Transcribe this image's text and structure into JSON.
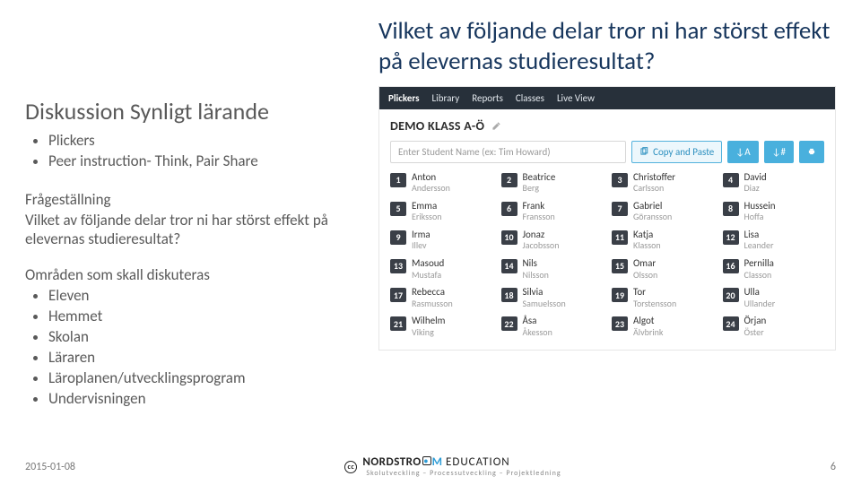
{
  "headline": "Vilket av följande delar tror ni har störst effekt på elevernas studieresultat?",
  "left": {
    "title": "Diskussion Synligt lärande",
    "bullets_top": [
      "Plickers",
      "Peer instruction- Think, Pair Share"
    ],
    "q_label": "Frågeställning",
    "q_text": "Vilket av följande delar tror ni har störst effekt på elevernas studieresultat?",
    "areas_label": "Områden som skall diskuteras",
    "areas": [
      "Eleven",
      "Hemmet",
      "Skolan",
      "Läraren",
      "Läroplanen/utvecklingsprogram",
      "Undervisningen"
    ]
  },
  "plickers": {
    "nav": {
      "brand": "Plickers",
      "items": [
        "Library",
        "Reports",
        "Classes",
        "Live View"
      ]
    },
    "class_name": "DEMO KLASS A-Ö",
    "input_placeholder": "Enter Student Name (ex: Tim Howard)",
    "copy_paste": "Copy and Paste",
    "sort_btns": [
      "↓A",
      "↓#"
    ],
    "print_icon": "print",
    "students": [
      {
        "n": 1,
        "fn": "Anton",
        "ln": "Andersson"
      },
      {
        "n": 2,
        "fn": "Beatrice",
        "ln": "Berg"
      },
      {
        "n": 3,
        "fn": "Christoffer",
        "ln": "Carlsson"
      },
      {
        "n": 4,
        "fn": "David",
        "ln": "Diaz"
      },
      {
        "n": 5,
        "fn": "Emma",
        "ln": "Eriksson"
      },
      {
        "n": 6,
        "fn": "Frank",
        "ln": "Fransson"
      },
      {
        "n": 7,
        "fn": "Gabriel",
        "ln": "Göransson"
      },
      {
        "n": 8,
        "fn": "Hussein",
        "ln": "Hoffa"
      },
      {
        "n": 9,
        "fn": "Irma",
        "ln": "Illev"
      },
      {
        "n": 10,
        "fn": "Jonaz",
        "ln": "Jacobsson"
      },
      {
        "n": 11,
        "fn": "Katja",
        "ln": "Klasson"
      },
      {
        "n": 12,
        "fn": "Lisa",
        "ln": "Leander"
      },
      {
        "n": 13,
        "fn": "Masoud",
        "ln": "Mustafa"
      },
      {
        "n": 14,
        "fn": "Nils",
        "ln": "Nilsson"
      },
      {
        "n": 15,
        "fn": "Omar",
        "ln": "Olsson"
      },
      {
        "n": 16,
        "fn": "Pernilla",
        "ln": "Classon"
      },
      {
        "n": 17,
        "fn": "Rebecca",
        "ln": "Rasmusson"
      },
      {
        "n": 18,
        "fn": "Silvia",
        "ln": "Samuelsson"
      },
      {
        "n": 19,
        "fn": "Tor",
        "ln": "Torstensson"
      },
      {
        "n": 20,
        "fn": "Ulla",
        "ln": "Ullander"
      },
      {
        "n": 21,
        "fn": "Wilhelm",
        "ln": "Viking"
      },
      {
        "n": 22,
        "fn": "Åsa",
        "ln": "Åkesson"
      },
      {
        "n": 23,
        "fn": "Algot",
        "ln": "Älvbrink"
      },
      {
        "n": 24,
        "fn": "Örjan",
        "ln": "Öster"
      }
    ]
  },
  "footer": {
    "date": "2015-01-08",
    "logo_main": "NORDSTRO",
    "logo_m": "M",
    "logo_sub": "EDUCATION",
    "tagline": "Skolutveckling – Processutveckling – Projektledning",
    "page": "6"
  },
  "colors": {
    "headline": "#17365d",
    "body": "#595959",
    "nav_bg": "#27303a",
    "btn_blue": "#49b0dd",
    "num_bg": "#3a3f47"
  }
}
